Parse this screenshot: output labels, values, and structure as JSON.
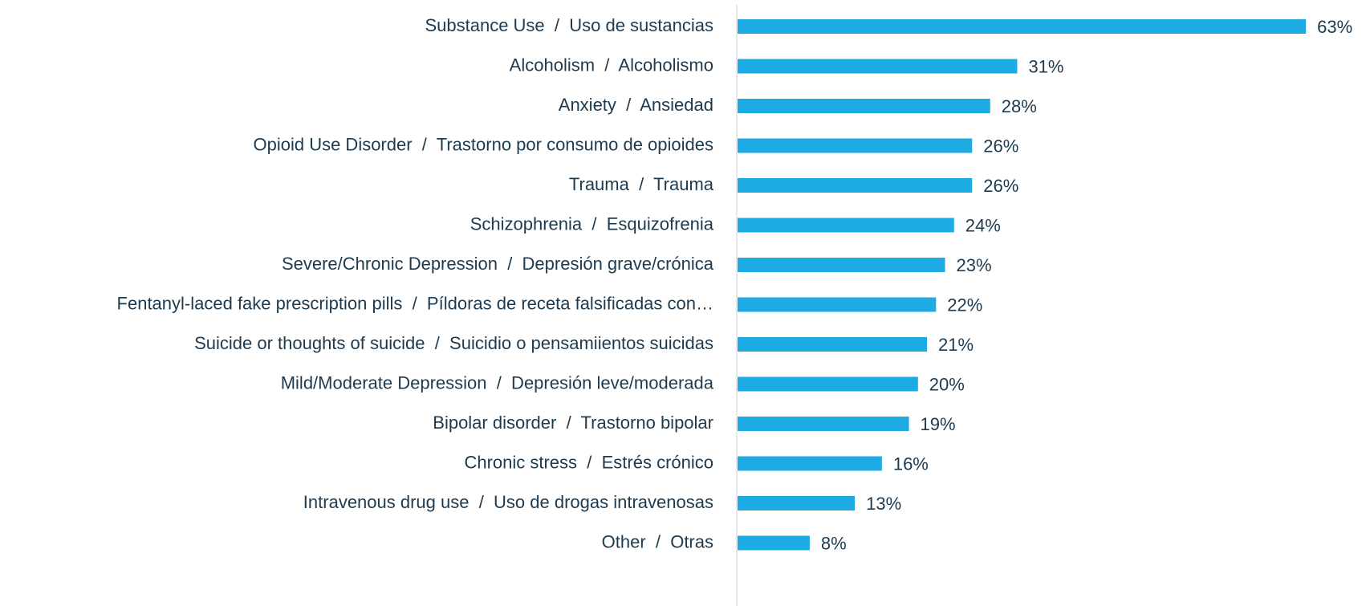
{
  "chart_data": {
    "type": "bar",
    "orientation": "horizontal",
    "color": "#1eaae2",
    "categories": [
      "Substance Use  /  Uso de sustancias",
      "Alcoholism  /  Alcoholismo",
      "Anxiety  /  Ansiedad",
      "Opioid Use Disorder  /  Trastorno por consumo de opioides",
      "Trauma  /  Trauma",
      "Schizophrenia  /  Esquizofrenia",
      "Severe/Chronic Depression  /  Depresión grave/crónica",
      "Fentanyl-laced fake prescription pills  /  Píldoras de receta falsificadas con…",
      "Suicide or thoughts of suicide  /  Suicidio o pensamiientos suicidas",
      "Mild/Moderate Depression  /  Depresión leve/moderada",
      "Bipolar disorder  /  Trastorno bipolar",
      "Chronic stress  /  Estrés crónico",
      "Intravenous drug use  /  Uso de drogas intravenosas",
      "Other  /  Otras"
    ],
    "values": [
      63,
      31,
      28,
      26,
      26,
      24,
      23,
      22,
      21,
      20,
      19,
      16,
      13,
      8
    ],
    "value_labels": [
      "63%",
      "31%",
      "28%",
      "26%",
      "26%",
      "24%",
      "23%",
      "22%",
      "21%",
      "20%",
      "19%",
      "16%",
      "13%",
      "8%"
    ]
  }
}
